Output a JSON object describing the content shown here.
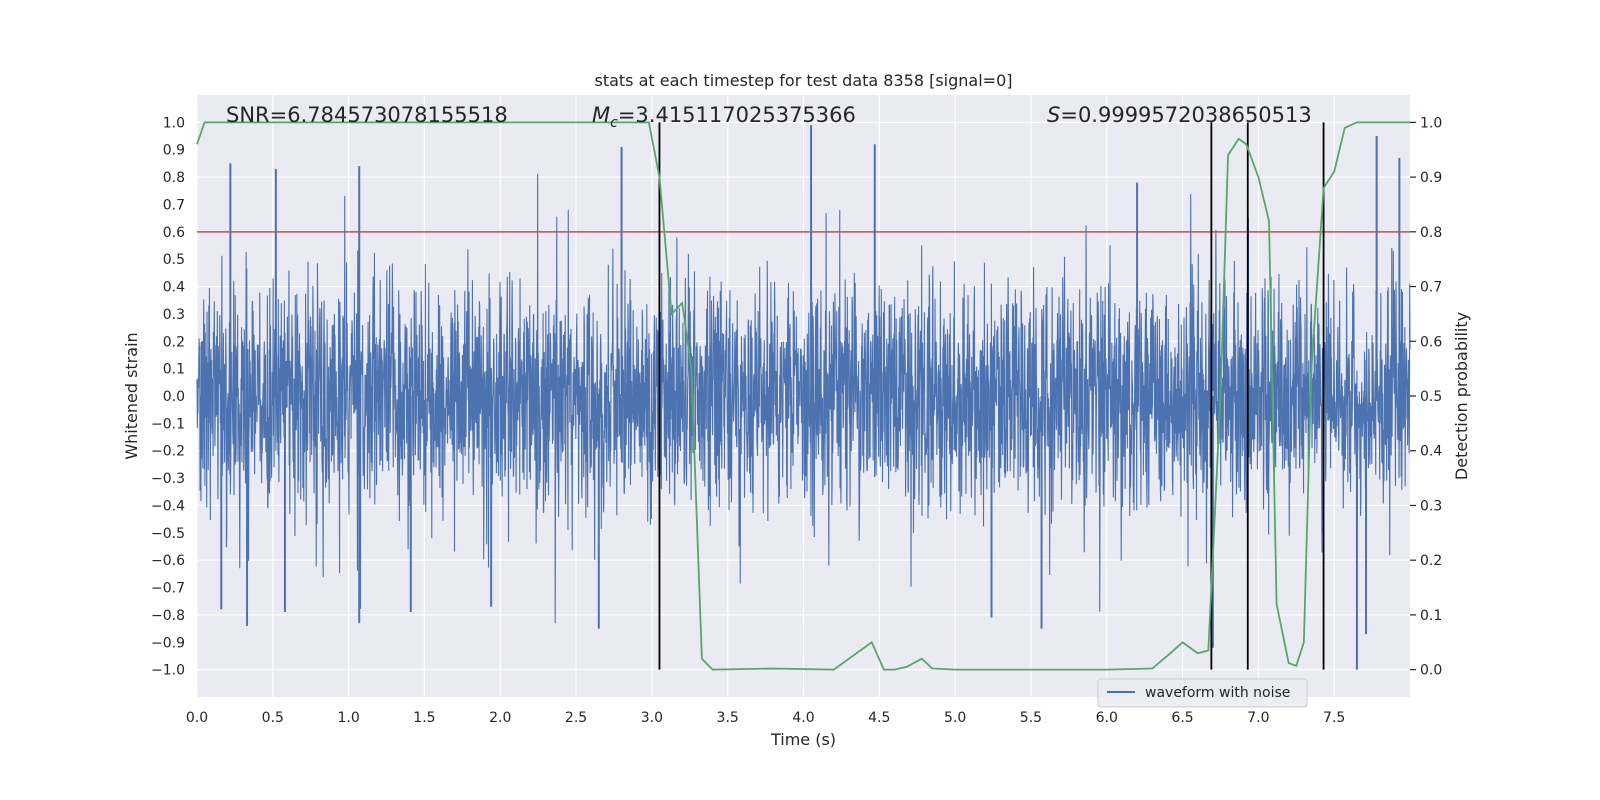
{
  "chart_data": {
    "type": "line",
    "title": "stats at each timestep for test data 8358 [signal=0]",
    "xlabel": "Time (s)",
    "ylabel_left": "Whitened strain",
    "ylabel_right": "Detection probability",
    "xlim": [
      0.0,
      8.0
    ],
    "ylim_left": [
      -1.1,
      1.1
    ],
    "ylim_right": [
      -0.05,
      1.05
    ],
    "x_ticks": [
      "0.0",
      "0.5",
      "1.0",
      "1.5",
      "2.0",
      "2.5",
      "3.0",
      "3.5",
      "4.0",
      "4.5",
      "5.0",
      "5.5",
      "6.0",
      "6.5",
      "7.0",
      "7.5"
    ],
    "x_tick_values": [
      0.0,
      0.5,
      1.0,
      1.5,
      2.0,
      2.5,
      3.0,
      3.5,
      4.0,
      4.5,
      5.0,
      5.5,
      6.0,
      6.5,
      7.0,
      7.5
    ],
    "y_left_ticks": [
      "1.0",
      "0.9",
      "0.8",
      "0.7",
      "0.6",
      "0.5",
      "0.4",
      "0.3",
      "0.2",
      "0.1",
      "0.0",
      "−0.1",
      "−0.2",
      "−0.3",
      "−0.4",
      "−0.5",
      "−0.6",
      "−0.7",
      "−0.8",
      "−0.9",
      "−1.0"
    ],
    "y_left_tick_values": [
      1.0,
      0.9,
      0.8,
      0.7,
      0.6,
      0.5,
      0.4,
      0.3,
      0.2,
      0.1,
      0.0,
      -0.1,
      -0.2,
      -0.3,
      -0.4,
      -0.5,
      -0.6,
      -0.7,
      -0.8,
      -0.9,
      -1.0
    ],
    "y_right_ticks": [
      "1.0",
      "0.9",
      "0.8",
      "0.7",
      "0.6",
      "0.5",
      "0.4",
      "0.3",
      "0.2",
      "0.1",
      "0.0"
    ],
    "y_right_tick_values": [
      1.0,
      0.9,
      0.8,
      0.7,
      0.6,
      0.5,
      0.4,
      0.3,
      0.2,
      0.1,
      0.0
    ],
    "annotations": {
      "snr": "SNR=6.784573078155518",
      "mc_symbol": "M",
      "mc_sub": "c",
      "mc_value": "=3.415117025375366",
      "s_symbol": "S",
      "s_value": "=0.9999572038650513"
    },
    "threshold": {
      "value": 0.8,
      "color": "#c44e52"
    },
    "vertical_markers": [
      3.05,
      6.69,
      6.93,
      7.43
    ],
    "legend": {
      "label": "waveform with noise",
      "placement": "lower-right"
    },
    "series": [
      {
        "name": "waveform with noise",
        "axis": "left",
        "color": "#4c72b0",
        "description": "dense noisy whitened strain, core band about -0.4..0.4 with spikes up to 0.99 and down to -1.0",
        "spikes": [
          {
            "x": 0.22,
            "y": 0.85
          },
          {
            "x": 0.52,
            "y": 0.83
          },
          {
            "x": 1.07,
            "y": 0.84
          },
          {
            "x": 2.8,
            "y": 0.91
          },
          {
            "x": 4.05,
            "y": 0.99
          },
          {
            "x": 4.47,
            "y": 0.92
          },
          {
            "x": 6.2,
            "y": 0.78
          },
          {
            "x": 7.78,
            "y": 0.95
          },
          {
            "x": 7.93,
            "y": 0.87
          },
          {
            "x": 0.16,
            "y": -0.78
          },
          {
            "x": 0.33,
            "y": -0.84
          },
          {
            "x": 1.07,
            "y": -0.83
          },
          {
            "x": 2.65,
            "y": -0.85
          },
          {
            "x": 5.57,
            "y": -0.85
          },
          {
            "x": 7.65,
            "y": -1.0
          },
          {
            "x": 7.71,
            "y": -0.87
          },
          {
            "x": 5.24,
            "y": -0.81
          },
          {
            "x": 1.94,
            "y": -0.77
          },
          {
            "x": 0.58,
            "y": -0.79
          },
          {
            "x": 1.41,
            "y": -0.79
          },
          {
            "x": 6.7,
            "y": -0.92
          }
        ]
      },
      {
        "name": "Detection probability",
        "axis": "right",
        "color": "#55a868",
        "points": [
          [
            0.0,
            0.96
          ],
          [
            0.05,
            1.0
          ],
          [
            0.1,
            1.0
          ],
          [
            1.0,
            1.0
          ],
          [
            2.0,
            1.0
          ],
          [
            2.98,
            1.0
          ],
          [
            3.05,
            0.9
          ],
          [
            3.13,
            0.65
          ],
          [
            3.2,
            0.67
          ],
          [
            3.26,
            0.55
          ],
          [
            3.33,
            0.02
          ],
          [
            3.4,
            0.0
          ],
          [
            3.8,
            0.002
          ],
          [
            4.2,
            0.0
          ],
          [
            4.45,
            0.05
          ],
          [
            4.53,
            0.0
          ],
          [
            4.6,
            0.0
          ],
          [
            4.68,
            0.005
          ],
          [
            4.78,
            0.02
          ],
          [
            4.85,
            0.002
          ],
          [
            5.0,
            0.0
          ],
          [
            5.5,
            0.0
          ],
          [
            6.0,
            0.0
          ],
          [
            6.3,
            0.002
          ],
          [
            6.42,
            0.03
          ],
          [
            6.5,
            0.05
          ],
          [
            6.6,
            0.03
          ],
          [
            6.67,
            0.035
          ],
          [
            6.75,
            0.5
          ],
          [
            6.8,
            0.94
          ],
          [
            6.87,
            0.97
          ],
          [
            6.92,
            0.96
          ],
          [
            7.0,
            0.9
          ],
          [
            7.07,
            0.82
          ],
          [
            7.12,
            0.12
          ],
          [
            7.2,
            0.012
          ],
          [
            7.25,
            0.007
          ],
          [
            7.3,
            0.05
          ],
          [
            7.35,
            0.55
          ],
          [
            7.43,
            0.88
          ],
          [
            7.5,
            0.91
          ],
          [
            7.57,
            0.99
          ],
          [
            7.65,
            1.0
          ],
          [
            8.0,
            1.0
          ]
        ]
      }
    ]
  }
}
